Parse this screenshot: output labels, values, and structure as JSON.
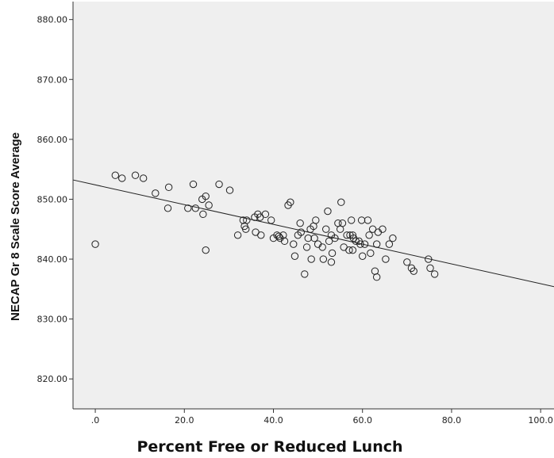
{
  "chart_data": {
    "type": "scatter",
    "xlabel": "Percent Free or Reduced Lunch",
    "ylabel": "NECAP Gr 8 Scale Score Average",
    "xlim": [
      -5,
      103
    ],
    "ylim": [
      815,
      883
    ],
    "x_ticks": [
      0,
      20,
      40,
      60,
      80,
      100
    ],
    "x_tick_labels": [
      ".0",
      "20.0",
      "40.0",
      "60.0",
      "80.0",
      "100.0"
    ],
    "y_ticks": [
      820,
      830,
      840,
      850,
      860,
      870,
      880
    ],
    "y_tick_labels": [
      "820.00",
      "830.00",
      "840.00",
      "850.00",
      "860.00",
      "870.00",
      "880.00"
    ],
    "grid": false,
    "plot_background": "#efefef",
    "marker": "open-circle",
    "fit_line": {
      "slope": -0.165,
      "intercept": 852.4
    },
    "points": [
      {
        "x": 0,
        "y": 842.5
      },
      {
        "x": 4.5,
        "y": 854
      },
      {
        "x": 6,
        "y": 853.5
      },
      {
        "x": 9,
        "y": 854
      },
      {
        "x": 10.8,
        "y": 853.5
      },
      {
        "x": 13.5,
        "y": 851
      },
      {
        "x": 16.5,
        "y": 852
      },
      {
        "x": 16.3,
        "y": 848.5
      },
      {
        "x": 20.8,
        "y": 848.5
      },
      {
        "x": 22,
        "y": 852.5
      },
      {
        "x": 22.5,
        "y": 848.5
      },
      {
        "x": 24,
        "y": 850
      },
      {
        "x": 24.8,
        "y": 850.5
      },
      {
        "x": 25.5,
        "y": 849
      },
      {
        "x": 24.2,
        "y": 847.5
      },
      {
        "x": 24.8,
        "y": 841.5
      },
      {
        "x": 27.8,
        "y": 852.5
      },
      {
        "x": 30.2,
        "y": 851.5
      },
      {
        "x": 32,
        "y": 844
      },
      {
        "x": 33.2,
        "y": 846.5
      },
      {
        "x": 33.5,
        "y": 845.5
      },
      {
        "x": 34,
        "y": 846.5
      },
      {
        "x": 33.8,
        "y": 845
      },
      {
        "x": 35.8,
        "y": 847
      },
      {
        "x": 36.5,
        "y": 847.5
      },
      {
        "x": 37,
        "y": 847
      },
      {
        "x": 38.2,
        "y": 847.5
      },
      {
        "x": 36,
        "y": 844.5
      },
      {
        "x": 37.2,
        "y": 844
      },
      {
        "x": 39.5,
        "y": 846.5
      },
      {
        "x": 40,
        "y": 843.5
      },
      {
        "x": 40.8,
        "y": 844
      },
      {
        "x": 41.2,
        "y": 843.8
      },
      {
        "x": 41.5,
        "y": 843.5
      },
      {
        "x": 42.2,
        "y": 844
      },
      {
        "x": 42.5,
        "y": 843
      },
      {
        "x": 43.3,
        "y": 849
      },
      {
        "x": 43.8,
        "y": 849.5
      },
      {
        "x": 44.5,
        "y": 842.5
      },
      {
        "x": 44.8,
        "y": 840.5
      },
      {
        "x": 45.5,
        "y": 844
      },
      {
        "x": 46,
        "y": 846
      },
      {
        "x": 46.2,
        "y": 844.5
      },
      {
        "x": 47,
        "y": 837.5
      },
      {
        "x": 47.5,
        "y": 842
      },
      {
        "x": 47.8,
        "y": 843.5
      },
      {
        "x": 48.5,
        "y": 840
      },
      {
        "x": 48.3,
        "y": 845
      },
      {
        "x": 49,
        "y": 845.5
      },
      {
        "x": 49.5,
        "y": 846.5
      },
      {
        "x": 49.2,
        "y": 843.5
      },
      {
        "x": 50,
        "y": 842.5
      },
      {
        "x": 51,
        "y": 842
      },
      {
        "x": 51.2,
        "y": 840
      },
      {
        "x": 51.8,
        "y": 845
      },
      {
        "x": 52.2,
        "y": 848
      },
      {
        "x": 52.5,
        "y": 843
      },
      {
        "x": 53,
        "y": 844
      },
      {
        "x": 53.2,
        "y": 841
      },
      {
        "x": 53,
        "y": 839.5
      },
      {
        "x": 53.8,
        "y": 843.5
      },
      {
        "x": 54.5,
        "y": 846
      },
      {
        "x": 55,
        "y": 845
      },
      {
        "x": 55.2,
        "y": 849.5
      },
      {
        "x": 55.5,
        "y": 846
      },
      {
        "x": 55.8,
        "y": 842
      },
      {
        "x": 56.5,
        "y": 844
      },
      {
        "x": 57,
        "y": 841.5
      },
      {
        "x": 57.2,
        "y": 844
      },
      {
        "x": 57.5,
        "y": 846.5
      },
      {
        "x": 57.8,
        "y": 844
      },
      {
        "x": 57.8,
        "y": 841.5
      },
      {
        "x": 58,
        "y": 843.5
      },
      {
        "x": 58.5,
        "y": 843
      },
      {
        "x": 59.2,
        "y": 843
      },
      {
        "x": 59.5,
        "y": 842.5
      },
      {
        "x": 59.8,
        "y": 846.5
      },
      {
        "x": 60,
        "y": 840.5
      },
      {
        "x": 60.5,
        "y": 842.5
      },
      {
        "x": 61.2,
        "y": 846.5
      },
      {
        "x": 61.5,
        "y": 844
      },
      {
        "x": 61.8,
        "y": 841
      },
      {
        "x": 62.3,
        "y": 845
      },
      {
        "x": 62.8,
        "y": 838
      },
      {
        "x": 63.2,
        "y": 837
      },
      {
        "x": 63.5,
        "y": 844.5
      },
      {
        "x": 63.2,
        "y": 842.5
      },
      {
        "x": 64.5,
        "y": 845
      },
      {
        "x": 65.2,
        "y": 840
      },
      {
        "x": 66,
        "y": 842.5
      },
      {
        "x": 66.8,
        "y": 843.5
      },
      {
        "x": 70,
        "y": 839.5
      },
      {
        "x": 71,
        "y": 838.5
      },
      {
        "x": 71.5,
        "y": 838
      },
      {
        "x": 74.8,
        "y": 840
      },
      {
        "x": 75.2,
        "y": 838.5
      },
      {
        "x": 76.2,
        "y": 837.5
      }
    ]
  },
  "colors": {
    "plot_background": "#efefef",
    "axis": "#333333",
    "marker_stroke": "#222222",
    "fit_line": "#222222"
  }
}
